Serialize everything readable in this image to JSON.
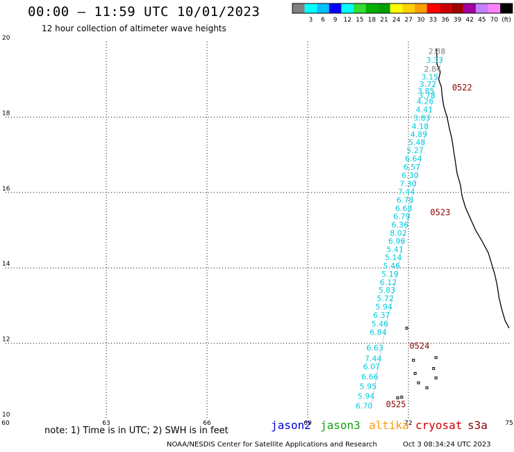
{
  "header": {
    "title": "00:00 – 11:59 UTC 10/01/2023",
    "subtitle": "12 hour collection of altimeter wave heights"
  },
  "colorbar": {
    "colors": [
      "#808080",
      "#00ffff",
      "#00bfff",
      "#0000ff",
      "#00ffff",
      "#33dd33",
      "#00b000",
      "#00a000",
      "#ffff00",
      "#ffd000",
      "#ffa000",
      "#ff0000",
      "#cc0000",
      "#a00000",
      "#a000a0",
      "#c080ff",
      "#ff80ff",
      "#000000"
    ],
    "labels": [
      "3",
      "6",
      "9",
      "12",
      "15",
      "18",
      "21",
      "24",
      "27",
      "30",
      "33",
      "36",
      "39",
      "42",
      "45",
      "70"
    ],
    "unit": "(ft)"
  },
  "axes": {
    "lon_ticks": [
      "60",
      "63",
      "66",
      "69",
      "72",
      "75"
    ],
    "lat_ticks": [
      "20",
      "18",
      "16",
      "14",
      "12",
      "10"
    ]
  },
  "track": {
    "color": "#00ccdd",
    "points": [
      {
        "lat": 19.75,
        "lon": 72.85,
        "swh": "2.88",
        "color": "#808080"
      },
      {
        "lat": 19.52,
        "lon": 72.78,
        "swh": "3.33",
        "color": "#00ccdd"
      },
      {
        "lat": 19.28,
        "lon": 72.72,
        "swh": "2.84",
        "color": "#808080"
      },
      {
        "lat": 19.07,
        "lon": 72.64,
        "swh": "3.15",
        "color": "#00ccdd"
      },
      {
        "lat": 18.87,
        "lon": 72.58,
        "swh": "3.72",
        "color": "#00ccdd"
      },
      {
        "lat": 18.7,
        "lon": 72.52,
        "swh": "3.85",
        "color": "#00ccdd"
      },
      {
        "lat": 18.58,
        "lon": 72.55,
        "swh": "3.78",
        "color": "#00ccdd"
      },
      {
        "lat": 18.42,
        "lon": 72.5,
        "swh": "4.26",
        "color": "#00ccdd"
      },
      {
        "lat": 18.2,
        "lon": 72.47,
        "swh": "4.41",
        "color": "#00ccdd"
      },
      {
        "lat": 17.98,
        "lon": 72.4,
        "swh": "3.83",
        "color": "#00ccdd"
      },
      {
        "lat": 17.76,
        "lon": 72.35,
        "swh": "4.18",
        "color": "#00ccdd"
      },
      {
        "lat": 17.55,
        "lon": 72.31,
        "swh": "4.89",
        "color": "#00ccdd"
      },
      {
        "lat": 17.33,
        "lon": 72.25,
        "swh": "5.48",
        "color": "#00ccdd"
      },
      {
        "lat": 17.12,
        "lon": 72.2,
        "swh": "5.27",
        "color": "#00ccdd"
      },
      {
        "lat": 16.9,
        "lon": 72.15,
        "swh": "6.64",
        "color": "#00ccdd"
      },
      {
        "lat": 16.68,
        "lon": 72.1,
        "swh": "6.57",
        "color": "#00ccdd"
      },
      {
        "lat": 16.46,
        "lon": 72.05,
        "swh": "6.30",
        "color": "#00ccdd"
      },
      {
        "lat": 16.24,
        "lon": 71.99,
        "swh": "7.30",
        "color": "#00ccdd"
      },
      {
        "lat": 16.02,
        "lon": 71.94,
        "swh": "7.44",
        "color": "#00ccdd"
      },
      {
        "lat": 15.8,
        "lon": 71.9,
        "swh": "6.78",
        "color": "#00ccdd"
      },
      {
        "lat": 15.58,
        "lon": 71.86,
        "swh": "6.68",
        "color": "#00ccdd"
      },
      {
        "lat": 15.37,
        "lon": 71.8,
        "swh": "6.79",
        "color": "#00ccdd"
      },
      {
        "lat": 15.15,
        "lon": 71.75,
        "swh": "6.36",
        "color": "#00ccdd"
      },
      {
        "lat": 14.93,
        "lon": 71.7,
        "swh": "8.02",
        "color": "#00ccdd"
      },
      {
        "lat": 14.71,
        "lon": 71.65,
        "swh": "6.96",
        "color": "#00ccdd"
      },
      {
        "lat": 14.49,
        "lon": 71.6,
        "swh": "5.41",
        "color": "#00ccdd"
      },
      {
        "lat": 14.28,
        "lon": 71.55,
        "swh": "5.14",
        "color": "#00ccdd"
      },
      {
        "lat": 14.06,
        "lon": 71.5,
        "swh": "5.46",
        "color": "#00ccdd"
      },
      {
        "lat": 13.84,
        "lon": 71.45,
        "swh": "5.19",
        "color": "#00ccdd"
      },
      {
        "lat": 13.62,
        "lon": 71.4,
        "swh": "6.12",
        "color": "#00ccdd"
      },
      {
        "lat": 13.41,
        "lon": 71.36,
        "swh": "5.83",
        "color": "#00ccdd"
      },
      {
        "lat": 13.19,
        "lon": 71.31,
        "swh": "5.72",
        "color": "#00ccdd"
      },
      {
        "lat": 12.97,
        "lon": 71.27,
        "swh": "5.94",
        "color": "#00ccdd"
      },
      {
        "lat": 12.75,
        "lon": 71.2,
        "swh": "6.37",
        "color": "#00ccdd"
      },
      {
        "lat": 12.52,
        "lon": 71.15,
        "swh": "5.46",
        "color": "#00ccdd"
      },
      {
        "lat": 12.3,
        "lon": 71.1,
        "swh": "6.84",
        "color": "#00ccdd"
      },
      {
        "lat": 11.88,
        "lon": 71.0,
        "swh": "6.63",
        "color": "#00ccdd"
      },
      {
        "lat": 11.6,
        "lon": 70.95,
        "swh": "7.44",
        "color": "#00ccdd"
      },
      {
        "lat": 11.38,
        "lon": 70.9,
        "swh": "6.07",
        "color": "#00ccdd"
      },
      {
        "lat": 11.12,
        "lon": 70.85,
        "swh": "6.66",
        "color": "#00ccdd"
      },
      {
        "lat": 10.86,
        "lon": 70.8,
        "swh": "5.95",
        "color": "#00ccdd"
      },
      {
        "lat": 10.6,
        "lon": 70.74,
        "swh": "5.94",
        "color": "#00ccdd"
      },
      {
        "lat": 10.34,
        "lon": 70.68,
        "swh": "6.70",
        "color": "#00ccdd"
      }
    ]
  },
  "times": [
    {
      "lat": 18.78,
      "lon": 73.3,
      "text": "0522"
    },
    {
      "lat": 15.47,
      "lon": 72.65,
      "text": "0523"
    },
    {
      "lat": 11.93,
      "lon": 72.03,
      "text": "0524"
    },
    {
      "lat": 10.38,
      "lon": 71.33,
      "text": "0525"
    }
  ],
  "coast": [
    [
      19.82,
      72.82
    ],
    [
      19.6,
      72.85
    ],
    [
      19.4,
      72.85
    ],
    [
      19.2,
      72.95
    ],
    [
      19.0,
      72.9
    ],
    [
      18.8,
      72.98
    ],
    [
      18.6,
      73.0
    ],
    [
      18.3,
      73.05
    ],
    [
      18.0,
      73.15
    ],
    [
      17.7,
      73.22
    ],
    [
      17.4,
      73.3
    ],
    [
      17.1,
      73.35
    ],
    [
      16.8,
      73.4
    ],
    [
      16.5,
      73.45
    ],
    [
      16.2,
      73.55
    ],
    [
      15.9,
      73.6
    ],
    [
      15.6,
      73.7
    ],
    [
      15.3,
      73.85
    ],
    [
      15.0,
      74.0
    ],
    [
      14.7,
      74.2
    ],
    [
      14.4,
      74.38
    ],
    [
      14.1,
      74.48
    ],
    [
      13.8,
      74.58
    ],
    [
      13.5,
      74.65
    ],
    [
      13.2,
      74.7
    ],
    [
      12.9,
      74.78
    ],
    [
      12.6,
      74.88
    ],
    [
      12.4,
      75.0
    ]
  ],
  "islands": [
    [
      11.55,
      72.15
    ],
    [
      11.2,
      72.2
    ],
    [
      10.95,
      72.3
    ],
    [
      10.82,
      72.55
    ],
    [
      10.55,
      71.68
    ],
    [
      10.57,
      71.8
    ],
    [
      11.08,
      72.82
    ],
    [
      11.62,
      72.82
    ],
    [
      11.33,
      72.75
    ],
    [
      12.4,
      71.95
    ]
  ],
  "footer": {
    "note": "note:  1) Time is in UTC;  2) SWH is in feet",
    "satellites": {
      "jason2": "jason2",
      "jason3": "jason3",
      "altika": "altika",
      "cryosat": "cryosat",
      "s3a": "s3a"
    },
    "credit": "NOAA/NESDIS Center for Satellite Applications and Research",
    "timestamp": "Oct  3 08:34:24 UTC 2023"
  }
}
